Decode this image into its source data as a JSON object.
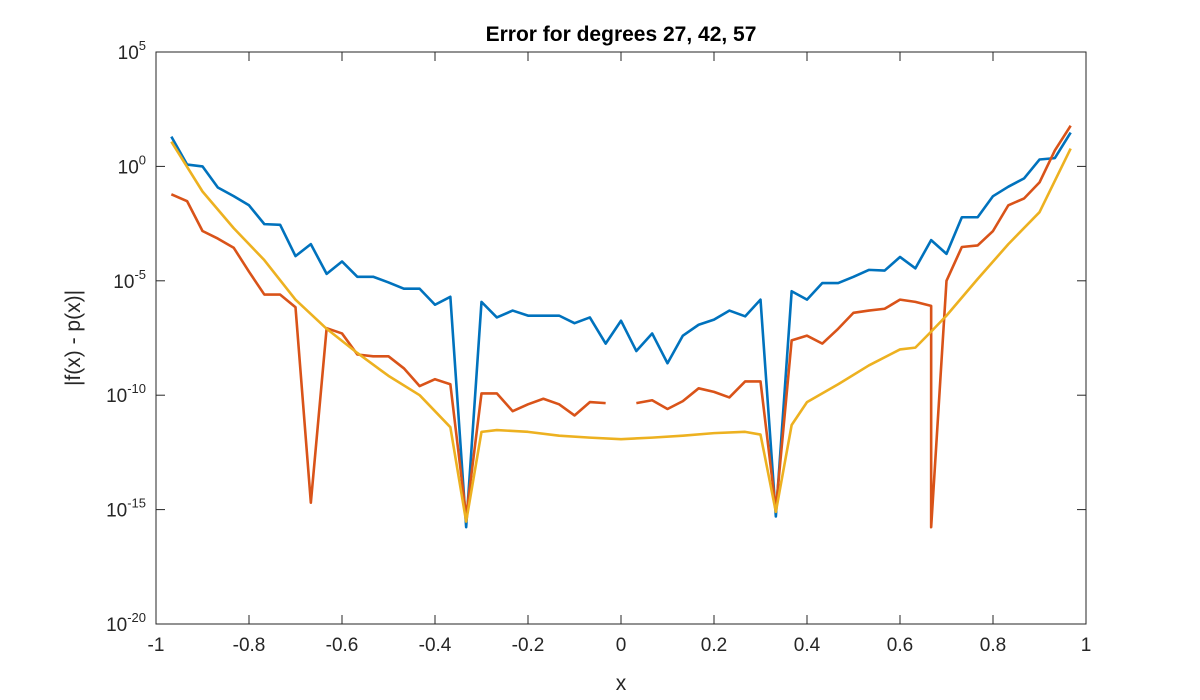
{
  "chart_data": {
    "type": "line",
    "title": "Error for degrees 27, 42, 57",
    "xlabel": "x",
    "ylabel": "|f(x) - p(x)|",
    "xlim": [
      -1,
      1
    ],
    "ylim": [
      1e-20,
      100000.0
    ],
    "yscale": "log",
    "grid": false,
    "legend": "none",
    "xticks": [
      "-1",
      "-0.8",
      "-0.6",
      "-0.4",
      "-0.2",
      "0",
      "0.2",
      "0.4",
      "0.6",
      "0.8",
      "1"
    ],
    "xtick_values": [
      -1,
      -0.8,
      -0.6,
      -0.4,
      -0.2,
      0,
      0.2,
      0.4,
      0.6,
      0.8,
      1
    ],
    "yticks": [
      {
        "base": "10",
        "exp": "-20",
        "value": 1e-20
      },
      {
        "base": "10",
        "exp": "-15",
        "value": 1e-15
      },
      {
        "base": "10",
        "exp": "-10",
        "value": 1e-10
      },
      {
        "base": "10",
        "exp": "-5",
        "value": 1e-05
      },
      {
        "base": "10",
        "exp": "0",
        "value": 1
      },
      {
        "base": "10",
        "exp": "5",
        "value": 100000.0
      }
    ],
    "series": [
      {
        "color": "#0072BD",
        "points": [
          [
            -0.967,
            20
          ],
          [
            -0.933,
            1.2
          ],
          [
            -0.9,
            1.0
          ],
          [
            -0.867,
            0.12
          ],
          [
            -0.833,
            0.05
          ],
          [
            -0.8,
            0.02
          ],
          [
            -0.767,
            0.003
          ],
          [
            -0.733,
            0.0028
          ],
          [
            -0.7,
            0.00012
          ],
          [
            -0.667,
            0.0004
          ],
          [
            -0.633,
            2e-05
          ],
          [
            -0.6,
            7e-05
          ],
          [
            -0.567,
            1.5e-05
          ],
          [
            -0.533,
            1.5e-05
          ],
          [
            -0.5,
            8.5e-06
          ],
          [
            -0.467,
            4.5e-06
          ],
          [
            -0.433,
            4.5e-06
          ],
          [
            -0.4,
            9e-07
          ],
          [
            -0.367,
            2e-06
          ],
          [
            -0.333,
            1.7e-16
          ],
          [
            -0.3,
            1.2e-06
          ],
          [
            -0.267,
            2.5e-07
          ],
          [
            -0.233,
            5e-07
          ],
          [
            -0.2,
            3e-07
          ],
          [
            -0.167,
            3e-07
          ],
          [
            -0.133,
            3e-07
          ],
          [
            -0.1,
            1.4e-07
          ],
          [
            -0.067,
            2.5e-07
          ],
          [
            -0.033,
            1.8e-08
          ],
          [
            0,
            1.8e-07
          ],
          [
            0.033,
            8.5e-09
          ],
          [
            0.067,
            5e-08
          ],
          [
            0.1,
            2.5e-09
          ],
          [
            0.133,
            4e-08
          ],
          [
            0.167,
            1.2e-07
          ],
          [
            0.2,
            2e-07
          ],
          [
            0.233,
            5e-07
          ],
          [
            0.267,
            2.8e-07
          ],
          [
            0.3,
            1.5e-06
          ],
          [
            0.333,
            5e-16
          ],
          [
            0.367,
            3.5e-06
          ],
          [
            0.4,
            1.5e-06
          ],
          [
            0.433,
            8e-06
          ],
          [
            0.467,
            8e-06
          ],
          [
            0.5,
            1.5e-05
          ],
          [
            0.533,
            3e-05
          ],
          [
            0.567,
            2.8e-05
          ],
          [
            0.6,
            0.00011
          ],
          [
            0.633,
            3.5e-05
          ],
          [
            0.667,
            0.0006
          ],
          [
            0.7,
            0.00015
          ],
          [
            0.733,
            0.006
          ],
          [
            0.767,
            0.006
          ],
          [
            0.8,
            0.05
          ],
          [
            0.833,
            0.13
          ],
          [
            0.867,
            0.3
          ],
          [
            0.9,
            2
          ],
          [
            0.933,
            2.3
          ],
          [
            0.967,
            30
          ]
        ]
      },
      {
        "color": "#D95319",
        "points": [
          [
            -0.967,
            0.06
          ],
          [
            -0.933,
            0.03
          ],
          [
            -0.9,
            0.0015
          ],
          [
            -0.867,
            0.0007
          ],
          [
            -0.833,
            0.00028
          ],
          [
            -0.8,
            2.5e-05
          ],
          [
            -0.767,
            2.5e-06
          ],
          [
            -0.733,
            2.5e-06
          ],
          [
            -0.7,
            7e-07
          ],
          [
            -0.667,
            2e-15
          ],
          [
            -0.633,
            8.5e-08
          ],
          [
            -0.6,
            5e-08
          ],
          [
            -0.567,
            6e-09
          ],
          [
            -0.533,
            5e-09
          ],
          [
            -0.5,
            5e-09
          ],
          [
            -0.467,
            1.5e-09
          ],
          [
            -0.433,
            2.5e-10
          ],
          [
            -0.4,
            5e-10
          ],
          [
            -0.367,
            3e-10
          ],
          [
            -0.333,
            5e-16
          ],
          [
            -0.3,
            1.2e-10
          ],
          [
            -0.267,
            1.2e-10
          ],
          [
            -0.233,
            2e-11
          ],
          [
            -0.2,
            4e-11
          ],
          [
            -0.167,
            7e-11
          ],
          [
            -0.133,
            4e-11
          ],
          [
            -0.1,
            1.3e-11
          ],
          [
            -0.067,
            5e-11
          ],
          [
            -0.033,
            4.5e-11
          ],
          null,
          [
            0.033,
            4.5e-11
          ],
          [
            0.067,
            6e-11
          ],
          [
            0.1,
            2.5e-11
          ],
          [
            0.133,
            5.5e-11
          ],
          [
            0.167,
            2e-10
          ],
          [
            0.2,
            1.4e-10
          ],
          [
            0.233,
            8e-11
          ],
          [
            0.267,
            4e-10
          ],
          [
            0.3,
            4e-10
          ],
          [
            0.333,
            1e-15
          ],
          [
            0.367,
            2.5e-08
          ],
          [
            0.4,
            4e-08
          ],
          [
            0.433,
            1.8e-08
          ],
          [
            0.467,
            8e-08
          ],
          [
            0.5,
            4e-07
          ],
          [
            0.533,
            5e-07
          ],
          [
            0.567,
            6e-07
          ],
          [
            0.6,
            1.5e-06
          ],
          [
            0.633,
            1.2e-06
          ],
          [
            0.667,
            8e-07
          ],
          [
            0.667,
            1.7e-16
          ],
          [
            0.7,
            1e-05
          ],
          [
            0.733,
            0.0003
          ],
          [
            0.767,
            0.00035
          ],
          [
            0.8,
            0.0015
          ],
          [
            0.833,
            0.02
          ],
          [
            0.867,
            0.04
          ],
          [
            0.9,
            0.2
          ],
          [
            0.933,
            5
          ],
          [
            0.967,
            60
          ]
        ]
      },
      {
        "color": "#EDB120",
        "points": [
          [
            -0.967,
            12
          ],
          [
            -0.9,
            0.08
          ],
          [
            -0.833,
            0.002
          ],
          [
            -0.767,
            8e-05
          ],
          [
            -0.7,
            1.5e-06
          ],
          [
            -0.633,
            8e-08
          ],
          [
            -0.567,
            7e-09
          ],
          [
            -0.5,
            7e-10
          ],
          [
            -0.433,
            1e-10
          ],
          [
            -0.367,
            4e-12
          ],
          [
            -0.333,
            3e-16
          ],
          [
            -0.3,
            2.5e-12
          ],
          [
            -0.267,
            3e-12
          ],
          [
            -0.2,
            2.5e-12
          ],
          [
            -0.133,
            1.7e-12
          ],
          [
            -0.067,
            1.4e-12
          ],
          [
            0,
            1.2e-12
          ],
          [
            0.067,
            1.4e-12
          ],
          [
            0.133,
            1.7e-12
          ],
          [
            0.2,
            2.2e-12
          ],
          [
            0.267,
            2.5e-12
          ],
          [
            0.3,
            1.9e-12
          ],
          [
            0.333,
            8e-16
          ],
          [
            0.367,
            5e-12
          ],
          [
            0.4,
            5e-11
          ],
          [
            0.467,
            3e-10
          ],
          [
            0.533,
            2e-09
          ],
          [
            0.6,
            1e-08
          ],
          [
            0.633,
            1.2e-08
          ],
          [
            0.667,
            6e-08
          ],
          [
            0.7,
            3e-07
          ],
          [
            0.767,
            1.2e-05
          ],
          [
            0.833,
            0.0004
          ],
          [
            0.9,
            0.01
          ],
          [
            0.967,
            6
          ]
        ]
      }
    ]
  }
}
